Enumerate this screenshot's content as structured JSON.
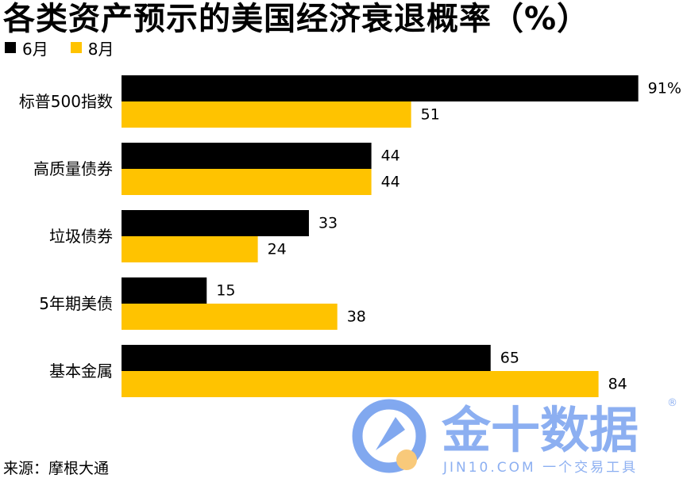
{
  "title": "各类资产预示的美国经济衰退概率（%）",
  "legend": [
    {
      "label": "6月"
    },
    {
      "label": "8月"
    }
  ],
  "chart_data": {
    "type": "bar",
    "orientation": "horizontal",
    "title": "各类资产预示的美国经济衰退概率（%）",
    "categories": [
      "标普500指数",
      "高质量债券",
      "垃圾债券",
      "5年期美债",
      "基本金属"
    ],
    "series": [
      {
        "name": "6月",
        "color": "#000000",
        "values": [
          91,
          44,
          33,
          15,
          65
        ],
        "labels": [
          "91%",
          "44",
          "33",
          "15",
          "65"
        ]
      },
      {
        "name": "8月",
        "color": "#ffc300",
        "values": [
          51,
          44,
          24,
          38,
          84
        ],
        "labels": [
          "51",
          "44",
          "24",
          "38",
          "84"
        ]
      }
    ],
    "xlim": [
      0,
      100
    ],
    "grid": false,
    "legend_position": "top-left"
  },
  "source": "来源：摩根大通",
  "watermark": {
    "brand": "金十数据",
    "registered": "®",
    "tagline": "JIN10.COM 一个交易工具",
    "colors": {
      "primary": "#2f6fe6",
      "accent": "#f5a623"
    }
  }
}
